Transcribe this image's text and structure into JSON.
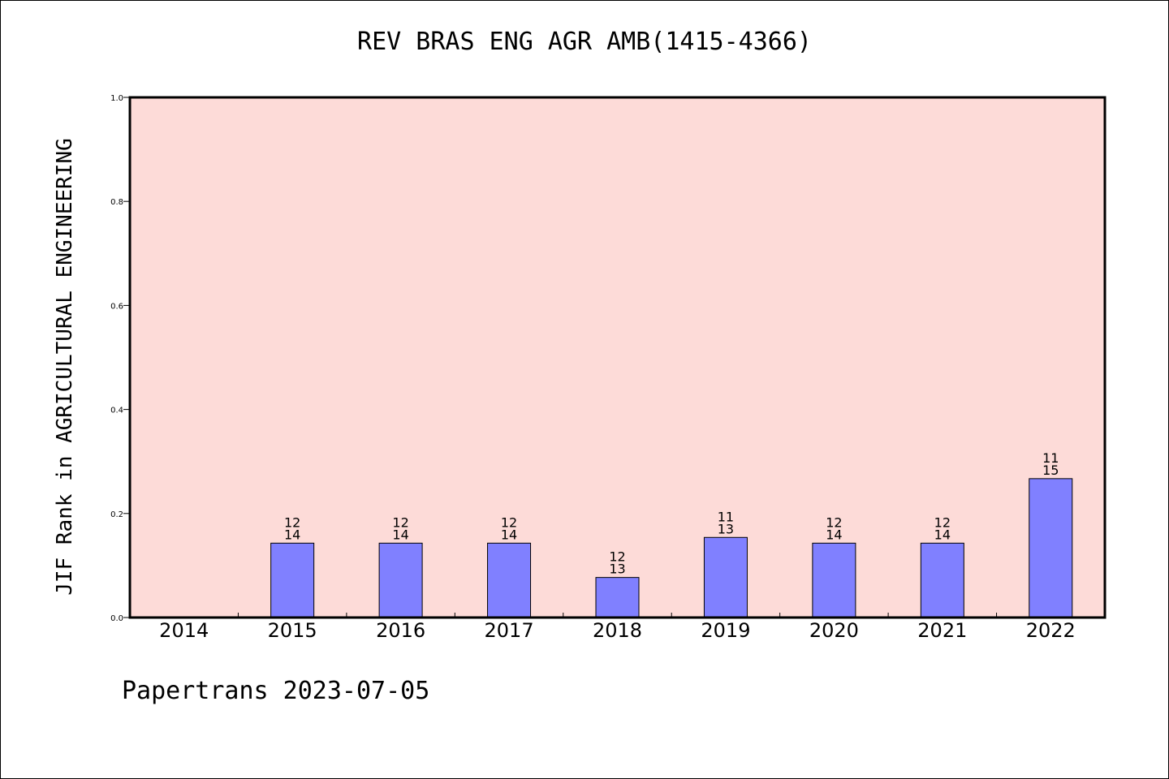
{
  "title": "REV BRAS ENG AGR AMB(1415-4366)",
  "footer": "Papertrans 2023-07-05",
  "chart_data": {
    "type": "bar",
    "title": "REV BRAS ENG AGR AMB(1415-4366)",
    "xlabel": "",
    "ylabel": "JIF Rank in AGRICULTURAL ENGINEERING",
    "ylim": [
      0,
      1.0
    ],
    "yticks": [
      "0.0",
      "0.2",
      "0.4",
      "0.6",
      "0.8",
      "1.0"
    ],
    "categories": [
      "2014",
      "2015",
      "2016",
      "2017",
      "2018",
      "2019",
      "2020",
      "2021",
      "2022"
    ],
    "values": [
      null,
      0.143,
      0.143,
      0.143,
      0.077,
      0.154,
      0.143,
      0.143,
      0.267
    ],
    "bar_labels": [
      null,
      [
        "12",
        "14"
      ],
      [
        "12",
        "14"
      ],
      [
        "12",
        "14"
      ],
      [
        "12",
        "13"
      ],
      [
        "11",
        "13"
      ],
      [
        "12",
        "14"
      ],
      [
        "12",
        "14"
      ],
      [
        "11",
        "15"
      ]
    ],
    "grid": false,
    "colors": {
      "plot_background": "#fddbd8",
      "bar_fill": "#8080ff",
      "bar_stroke": "#000000"
    }
  }
}
